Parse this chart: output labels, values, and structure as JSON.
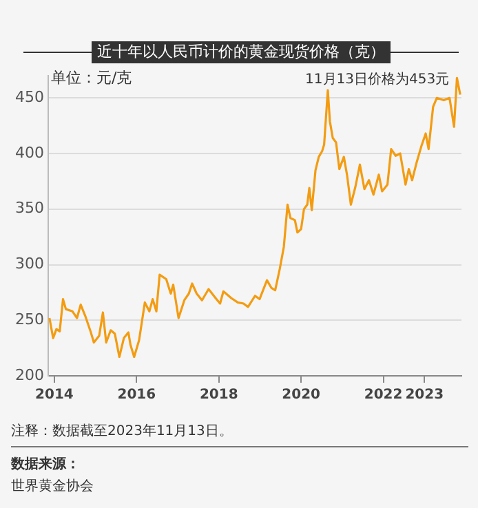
{
  "chart_data": {
    "type": "line",
    "title": "近十年以人民币计价的黄金现货价格（克）",
    "ylabel": "单位：元/克",
    "x": [
      2013.88,
      2013.97,
      2014.05,
      2014.13,
      2014.21,
      2014.28,
      2014.44,
      2014.55,
      2014.64,
      2014.75,
      2014.88,
      2014.96,
      2015.09,
      2015.18,
      2015.26,
      2015.37,
      2015.47,
      2015.58,
      2015.69,
      2015.8,
      2015.85,
      2015.94,
      2016.06,
      2016.2,
      2016.31,
      2016.39,
      2016.48,
      2016.56,
      2016.72,
      2016.83,
      2016.89,
      2017.02,
      2017.16,
      2017.27,
      2017.35,
      2017.46,
      2017.59,
      2017.75,
      2017.92,
      2018.03,
      2018.11,
      2018.3,
      2018.46,
      2018.6,
      2018.71,
      2018.88,
      2018.99,
      2019.17,
      2019.28,
      2019.37,
      2019.48,
      2019.58,
      2019.67,
      2019.74,
      2019.85,
      2019.91,
      2020.0,
      2020.07,
      2020.15,
      2020.2,
      2020.26,
      2020.35,
      2020.43,
      2020.51,
      2020.56,
      2020.65,
      2020.7,
      2020.77,
      2020.85,
      2020.93,
      2021.04,
      2021.12,
      2021.21,
      2021.32,
      2021.43,
      2021.54,
      2021.65,
      2021.76,
      2021.89,
      2021.97,
      2022.1,
      2022.19,
      2022.3,
      2022.41,
      2022.54,
      2022.62,
      2022.7,
      2022.81,
      2022.92,
      2023.03,
      2023.1,
      2023.21,
      2023.3,
      2023.47,
      2023.61,
      2023.72,
      2023.79,
      2023.87
    ],
    "series": [
      {
        "color": "#f39c12",
        "values": [
          252,
          234,
          242,
          240,
          269,
          260,
          258,
          252,
          264,
          254,
          240,
          230,
          236,
          257,
          230,
          241,
          238,
          217,
          234,
          239,
          228,
          217,
          232,
          266,
          258,
          269,
          258,
          291,
          287,
          274,
          282,
          252,
          268,
          274,
          283,
          274,
          268,
          278,
          270,
          265,
          276,
          270,
          266,
          265,
          262,
          272,
          269,
          286,
          279,
          277,
          296,
          316,
          354,
          342,
          340,
          329,
          332,
          350,
          354,
          369,
          349,
          385,
          397,
          402,
          408,
          457,
          429,
          414,
          410,
          386,
          397,
          380,
          354,
          370,
          390,
          368,
          376,
          363,
          381,
          366,
          372,
          404,
          398,
          400,
          372,
          386,
          376,
          392,
          406,
          418,
          404,
          442,
          450,
          448,
          450,
          424,
          468,
          453
        ]
      }
    ],
    "xlim": [
      2013.85,
      2023.9
    ],
    "xticks": [
      2014,
      2016,
      2018,
      2020,
      2022,
      2023
    ],
    "ylim": [
      200,
      470
    ],
    "yticks": [
      200,
      250,
      300,
      350,
      400,
      450
    ],
    "grid": "y",
    "legend": false,
    "marker": "none",
    "line_style": "solid",
    "annotations": [
      {
        "text": "11月13日价格为453元",
        "x": 2023.87,
        "y": 453
      },
      "注释：数据截至2023年11月13日。",
      "数据来源：",
      "世界黄金协会"
    ]
  }
}
